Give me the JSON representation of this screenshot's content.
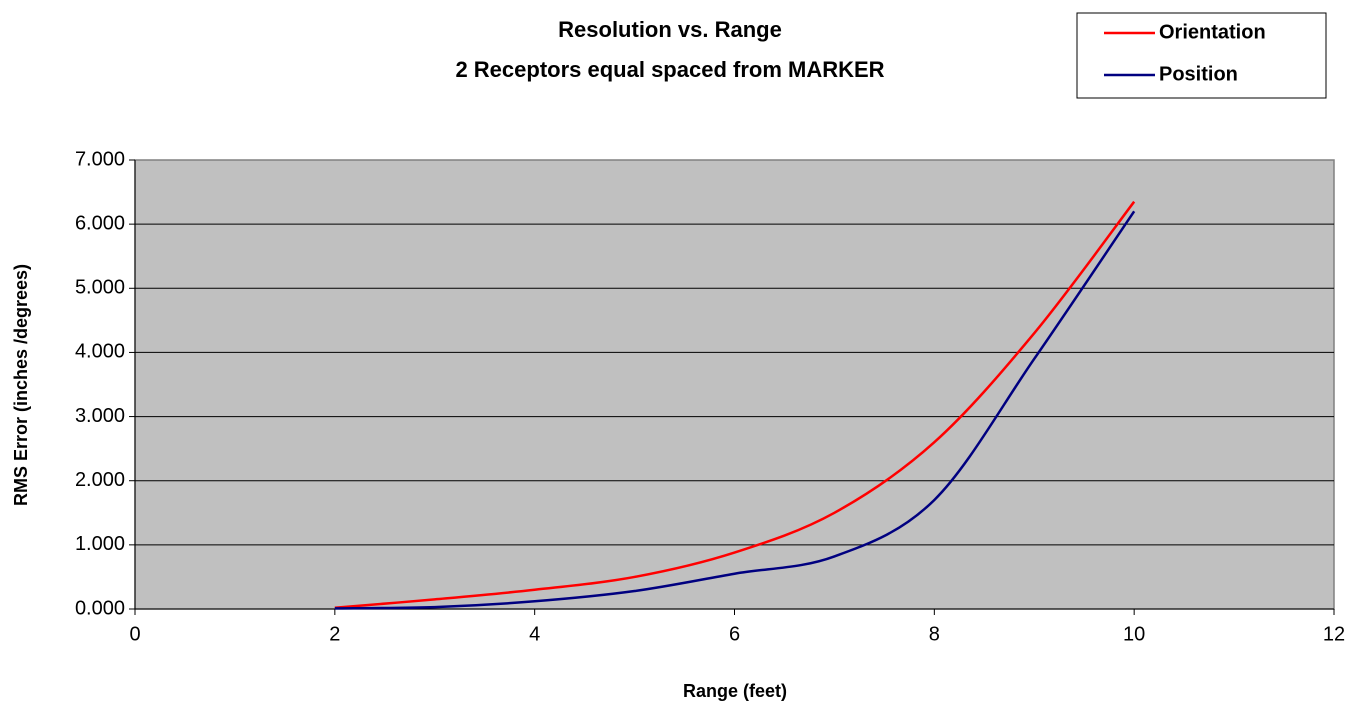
{
  "chart_data": {
    "type": "line",
    "title": "Resolution vs. Range",
    "subtitle": "2 Receptors equal spaced from MARKER",
    "x_label": "Range (feet)",
    "y_label": "RMS Error (inches /degrees)",
    "x": [
      2,
      3,
      4,
      5,
      6,
      7,
      8,
      9,
      10
    ],
    "series": [
      {
        "name": "Orientation",
        "color": "#ff0000",
        "values": [
          0.02,
          0.15,
          0.3,
          0.5,
          0.88,
          1.5,
          2.6,
          4.3,
          6.35
        ]
      },
      {
        "name": "Position",
        "color": "#000080",
        "values": [
          0.01,
          0.03,
          0.12,
          0.28,
          0.55,
          0.82,
          1.7,
          3.9,
          6.2
        ]
      }
    ],
    "xlim": [
      0,
      12
    ],
    "xticks": [
      0,
      2,
      4,
      6,
      8,
      10,
      12
    ],
    "ylim": [
      0,
      7
    ],
    "yticks": [
      {
        "value": 0,
        "label": "0.000"
      },
      {
        "value": 1,
        "label": "1.000"
      },
      {
        "value": 2,
        "label": "2.000"
      },
      {
        "value": 3,
        "label": "3.000"
      },
      {
        "value": 4,
        "label": "4.000"
      },
      {
        "value": 5,
        "label": "5.000"
      },
      {
        "value": 6,
        "label": "6.000"
      },
      {
        "value": 7,
        "label": "7.000"
      }
    ],
    "grid": true,
    "legend": "top-right"
  }
}
